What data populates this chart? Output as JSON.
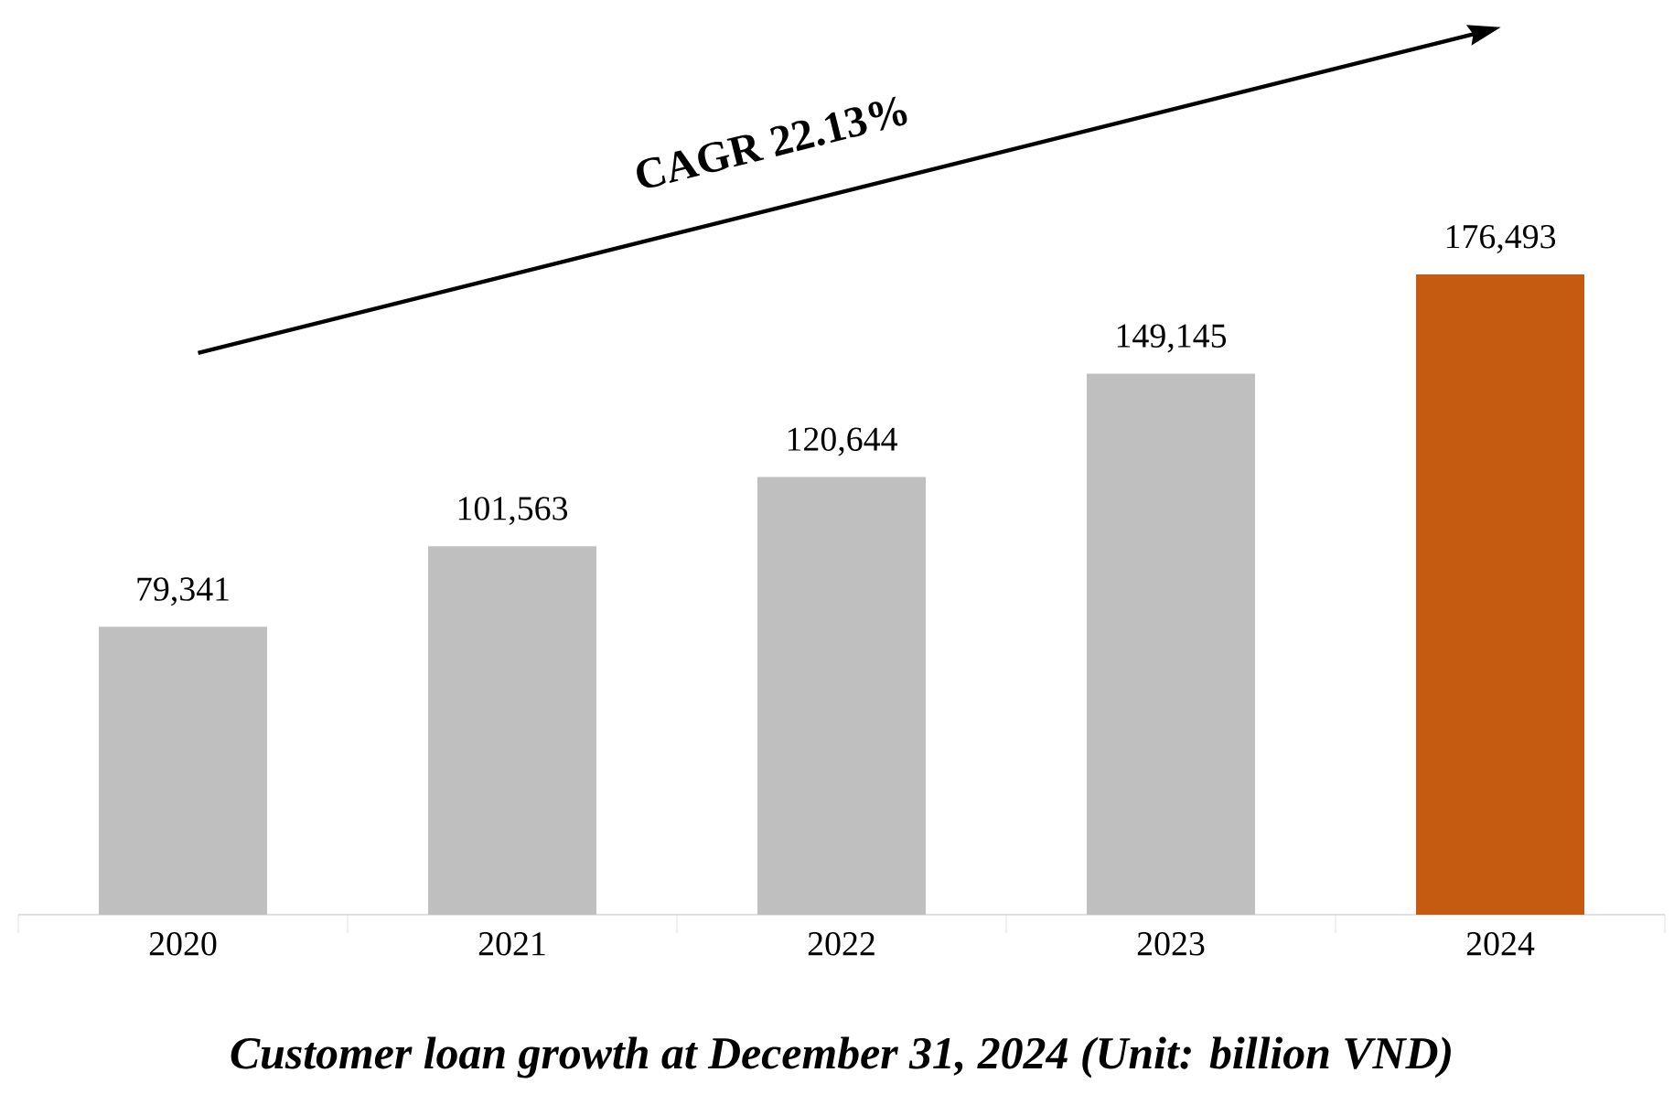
{
  "chart_data": {
    "type": "bar",
    "title": "Customer loan growth at December 31, 2024 (Unit: billion VND)",
    "categories": [
      "2020",
      "2021",
      "2022",
      "2023",
      "2024"
    ],
    "values": [
      79341,
      101563,
      120644,
      149145,
      176493
    ],
    "value_labels": [
      "79,341",
      "101,563",
      "120,644",
      "149,145",
      "176,493"
    ],
    "colors": [
      "#bfbfbf",
      "#bfbfbf",
      "#bfbfbf",
      "#bfbfbf",
      "#c55a11"
    ],
    "annotations": [
      "CAGR 22.13%"
    ]
  }
}
